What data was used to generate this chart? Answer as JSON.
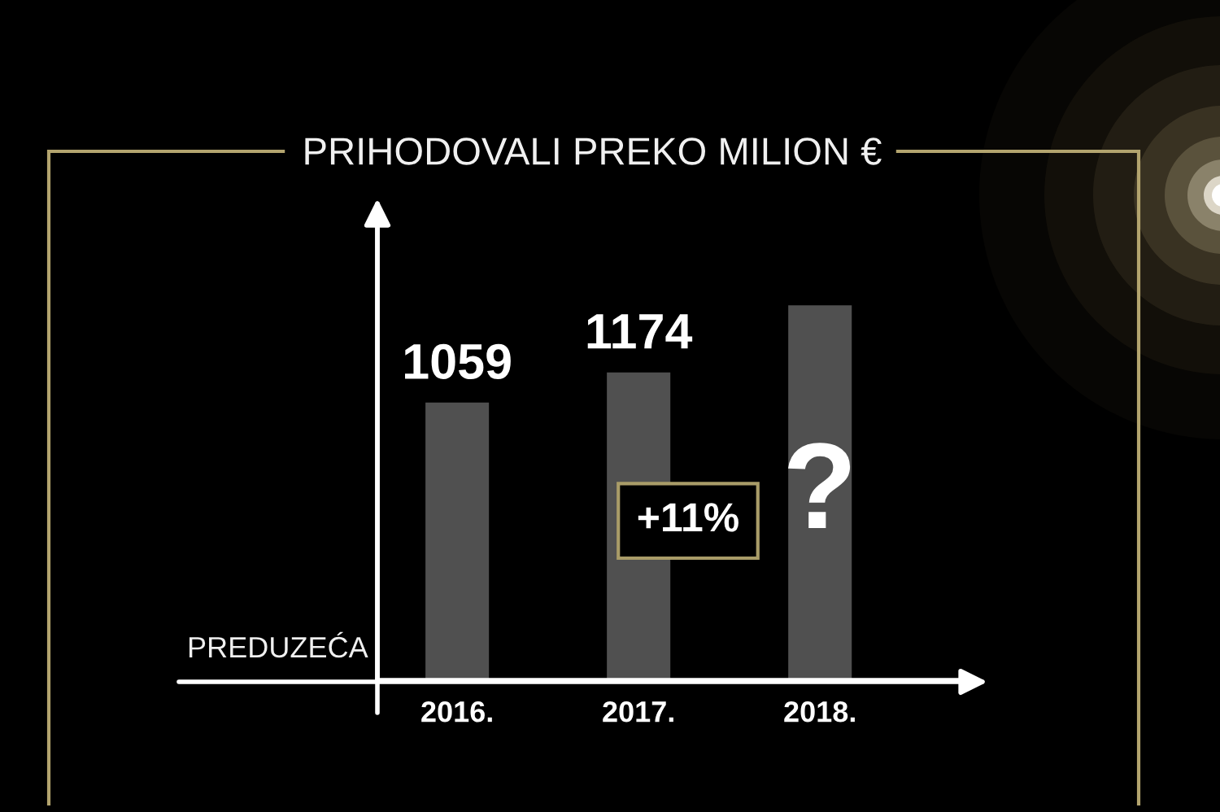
{
  "chart_data": {
    "type": "bar",
    "title": "PRIHODOVALI PREKO MILION €",
    "ylabel": "PREDUZEĆA",
    "categories": [
      "2016.",
      "2017.",
      "2018."
    ],
    "values": [
      1059,
      1174,
      1430
    ],
    "color": "#505050",
    "value_labels": [
      "1059",
      "1174",
      null
    ],
    "annotations": [
      "?",
      "+11%"
    ],
    "tick_labels": "x",
    "grid": false,
    "legend": false
  }
}
